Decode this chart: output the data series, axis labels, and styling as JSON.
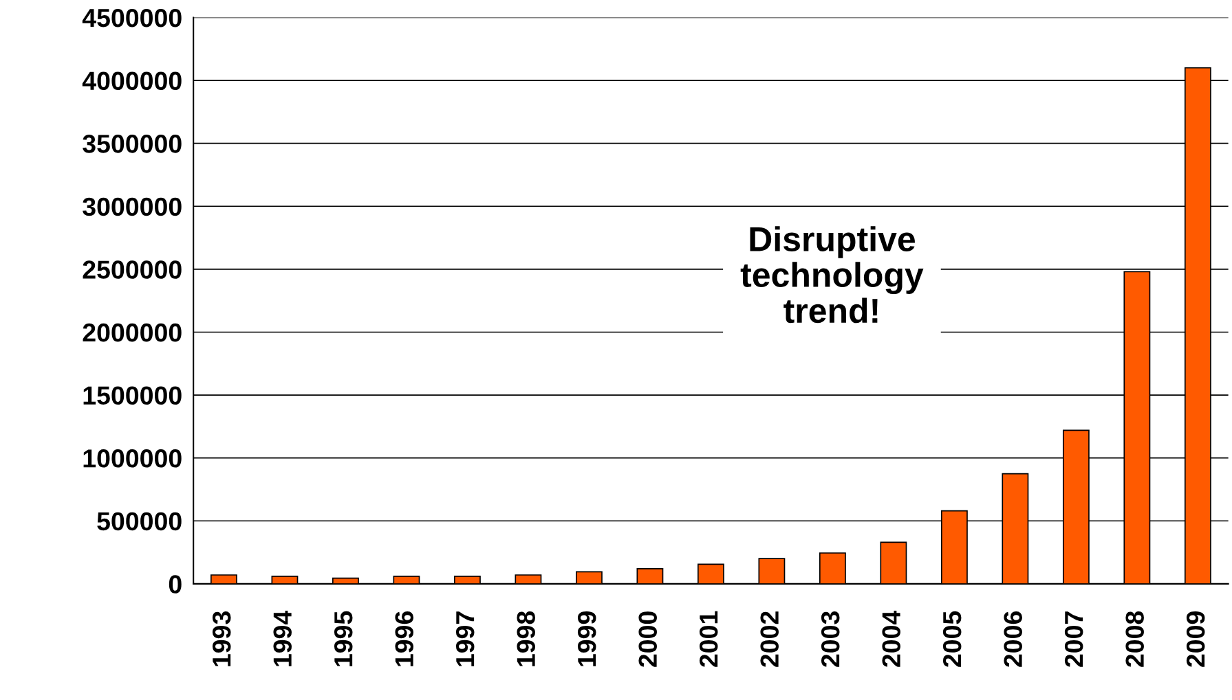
{
  "chart_data": {
    "type": "bar",
    "categories": [
      "1993",
      "1994",
      "1995",
      "1996",
      "1997",
      "1998",
      "1999",
      "2000",
      "2001",
      "2002",
      "2003",
      "2004",
      "2005",
      "2006",
      "2007",
      "2008",
      "2009"
    ],
    "values": [
      70000,
      60000,
      45000,
      60000,
      60000,
      70000,
      95000,
      120000,
      155000,
      200000,
      245000,
      330000,
      580000,
      875000,
      1220000,
      2480000,
      4100000
    ],
    "color": "#ff5a00",
    "ylim": [
      0,
      4500000
    ],
    "yticks": [
      0,
      500000,
      1000000,
      1500000,
      2000000,
      2500000,
      3000000,
      3500000,
      4000000,
      4500000
    ],
    "grid": "y",
    "annotations": [
      "Disruptive\ntechnology\ntrend!"
    ]
  }
}
